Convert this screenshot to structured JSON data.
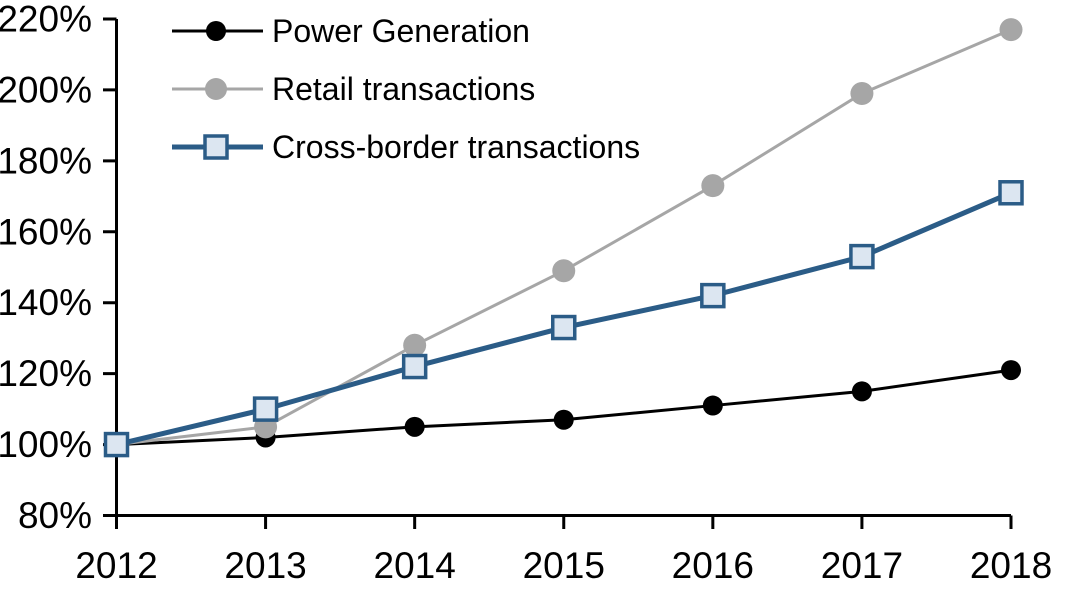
{
  "chart_data": {
    "type": "line",
    "title": "",
    "xlabel": "",
    "ylabel": "",
    "x": [
      2012,
      2013,
      2014,
      2015,
      2016,
      2017,
      2018
    ],
    "x_tick_labels": [
      "2012",
      "2013",
      "2014",
      "2015",
      "2016",
      "2017",
      "2018"
    ],
    "xlim": [
      2012,
      2018
    ],
    "y_ticks": [
      80,
      100,
      120,
      140,
      160,
      180,
      200,
      220
    ],
    "y_tick_labels": [
      "80%",
      "100%",
      "120%",
      "140%",
      "160%",
      "180%",
      "200%",
      "220%"
    ],
    "ylim": [
      80,
      220
    ],
    "grid": false,
    "legend_position": "top-left",
    "background_color": "#ffffff",
    "axis_color": "#000000",
    "series": [
      {
        "name": "Power Generation",
        "marker": "circle",
        "color": "#000000",
        "marker_fill": "#000000",
        "values": [
          100,
          102,
          105,
          107,
          111,
          115,
          121
        ]
      },
      {
        "name": "Retail transactions",
        "marker": "circle",
        "color": "#a6a6a6",
        "marker_fill": "#a6a6a6",
        "values": [
          100,
          105,
          128,
          149,
          173,
          199,
          217
        ]
      },
      {
        "name": "Cross-border transactions",
        "marker": "square",
        "color": "#2b5c87",
        "marker_fill": "#dce6f1",
        "values": [
          100,
          110,
          122,
          133,
          142,
          153,
          171
        ]
      }
    ]
  }
}
